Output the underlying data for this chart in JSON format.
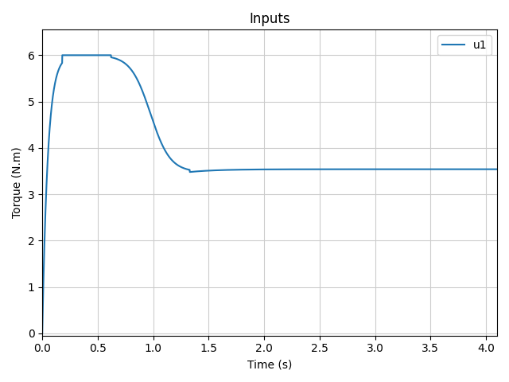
{
  "title": "Inputs",
  "xlabel": "Time (s)",
  "ylabel": "Torque (N.m)",
  "legend_label": "u1",
  "line_color": "#1f77b4",
  "xlim": [
    0.0,
    4.1
  ],
  "ylim": [
    -0.05,
    6.55
  ],
  "xticks": [
    0.0,
    0.5,
    1.0,
    1.5,
    2.0,
    2.5,
    3.0,
    3.5,
    4.0
  ],
  "yticks": [
    0,
    1,
    2,
    3,
    4,
    5,
    6
  ],
  "grid": true,
  "figsize": [
    6.4,
    4.8
  ],
  "dpi": 100,
  "t_rise_end": 0.18,
  "t_plateau_end": 0.62,
  "t_drop_end": 1.33,
  "v_peak": 6.0,
  "v_steady": 3.54,
  "v_dip": 3.48,
  "rise_tau": 0.05,
  "drop_sigmoid_k": 8.0,
  "decay_tau": 0.25
}
